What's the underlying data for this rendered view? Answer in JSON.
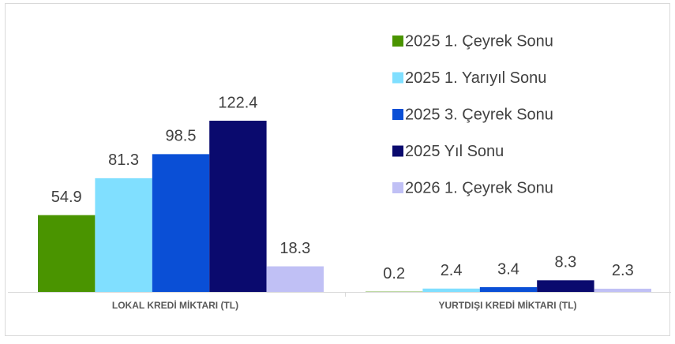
{
  "chart_data": {
    "type": "bar",
    "categories": [
      "LOKAL KREDİ MİKTARI (TL)",
      "YURTDIŞI KREDİ MİKTARI (TL)"
    ],
    "series": [
      {
        "name": "2025 1. Çeyrek Sonu",
        "color": "#4a9400",
        "values": [
          54.9,
          0.2
        ]
      },
      {
        "name": "2025 1. Yarıyıl Sonu",
        "color": "#80dfff",
        "values": [
          81.3,
          2.4
        ]
      },
      {
        "name": "2025 3. Çeyrek Sonu",
        "color": "#0a4fd6",
        "values": [
          98.5,
          3.4
        ]
      },
      {
        "name": "2025 Yıl Sonu",
        "color": "#0a0a6e",
        "values": [
          122.4,
          8.3
        ]
      },
      {
        "name": "2026 1. Çeyrek Sonu",
        "color": "#c0c0f5",
        "values": [
          18.3,
          2.3
        ]
      }
    ],
    "legend": "top-right"
  }
}
